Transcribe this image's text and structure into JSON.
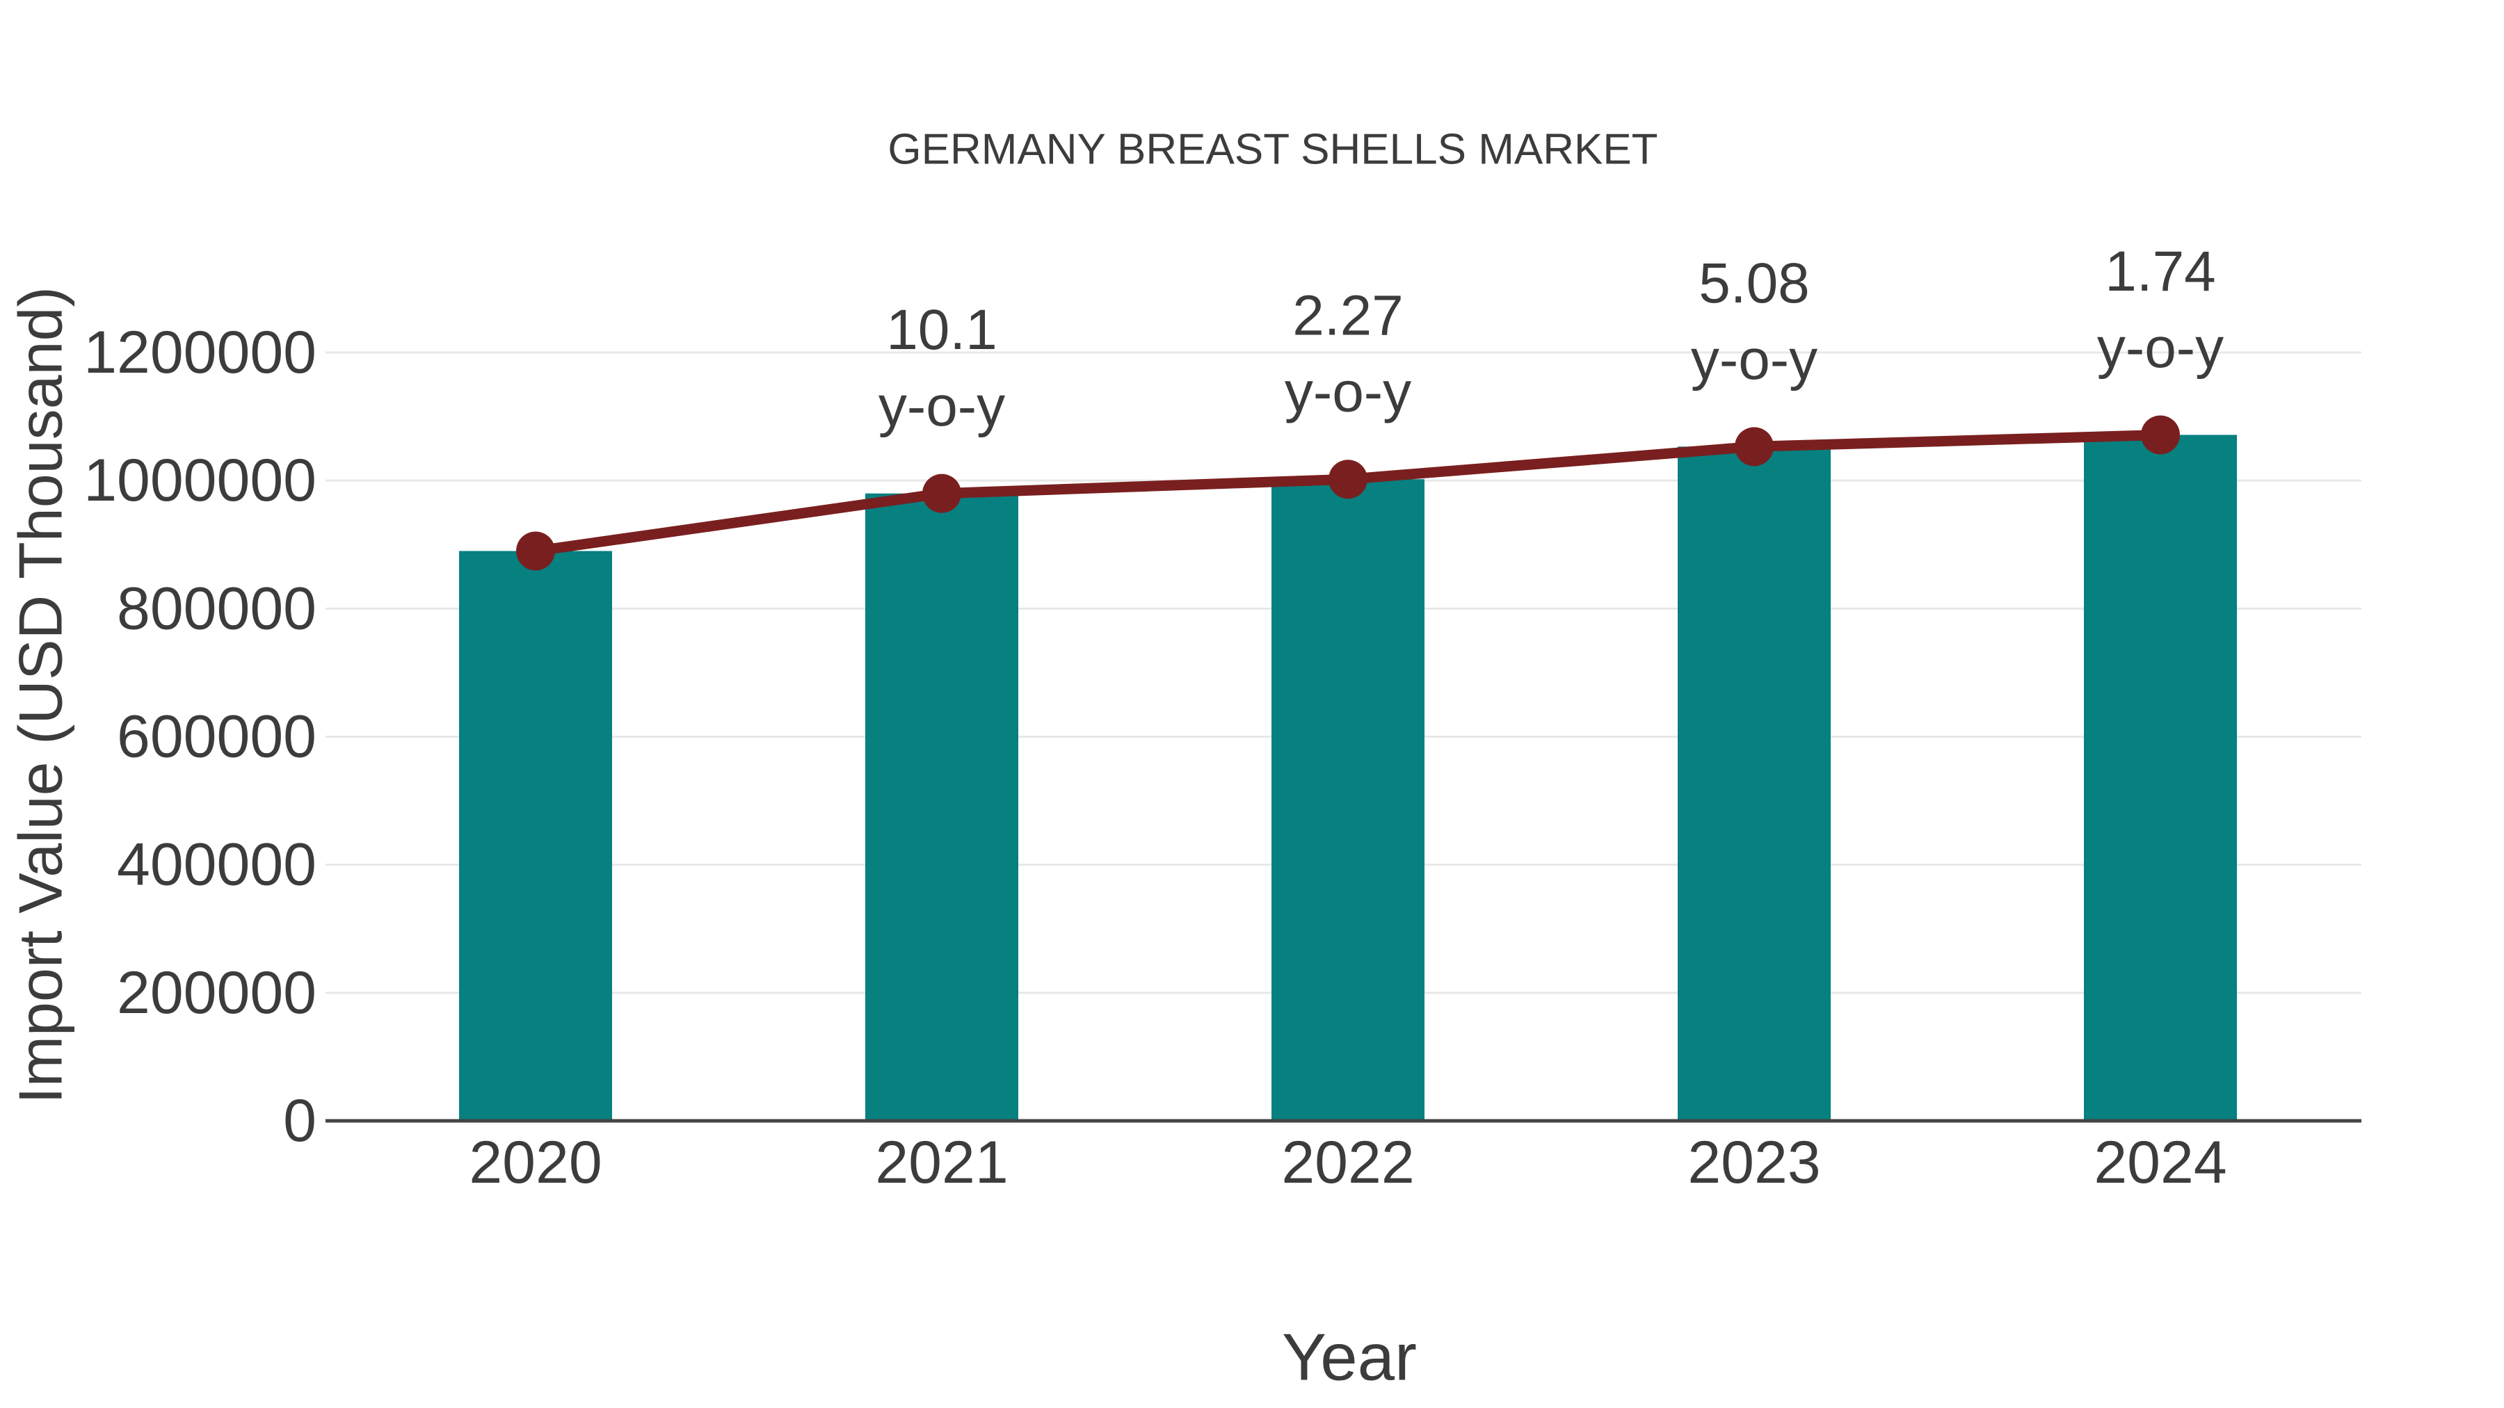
{
  "chart_data": {
    "type": "bar",
    "title": "GERMANY BREAST SHELLS MARKET",
    "xlabel": "Year",
    "ylabel": "Import Value (USD Thousand)",
    "categories": [
      "2020",
      "2021",
      "2022",
      "2023",
      "2024"
    ],
    "series": [
      {
        "name": "Import Value bars",
        "type": "bar",
        "color": "#078080",
        "values": [
          890000,
          979890,
          1002132,
          1053041,
          1071364
        ]
      },
      {
        "name": "Import Value trend line",
        "type": "line",
        "color": "#7A1F1F",
        "values": [
          890000,
          979890,
          1002132,
          1053041,
          1071364
        ]
      }
    ],
    "annotations": [
      {
        "category": "2021",
        "line1": "10.1",
        "line2": "y-o-y"
      },
      {
        "category": "2022",
        "line1": "2.27",
        "line2": "y-o-y"
      },
      {
        "category": "2023",
        "line1": "5.08",
        "line2": "y-o-y"
      },
      {
        "category": "2024",
        "line1": "1.74",
        "line2": "y-o-y"
      }
    ],
    "yticks": [
      0,
      200000,
      400000,
      600000,
      800000,
      1000000,
      1200000
    ],
    "ylim": [
      0,
      1340000
    ],
    "grid": true,
    "legend_position": "none",
    "colors": {
      "bar": "#078080",
      "line": "#7A1F1F",
      "marker": "#7A1F1F",
      "text": "#3c3c3c",
      "grid": "#e8e8e8",
      "axis": "#444444",
      "background": "#ffffff"
    }
  }
}
